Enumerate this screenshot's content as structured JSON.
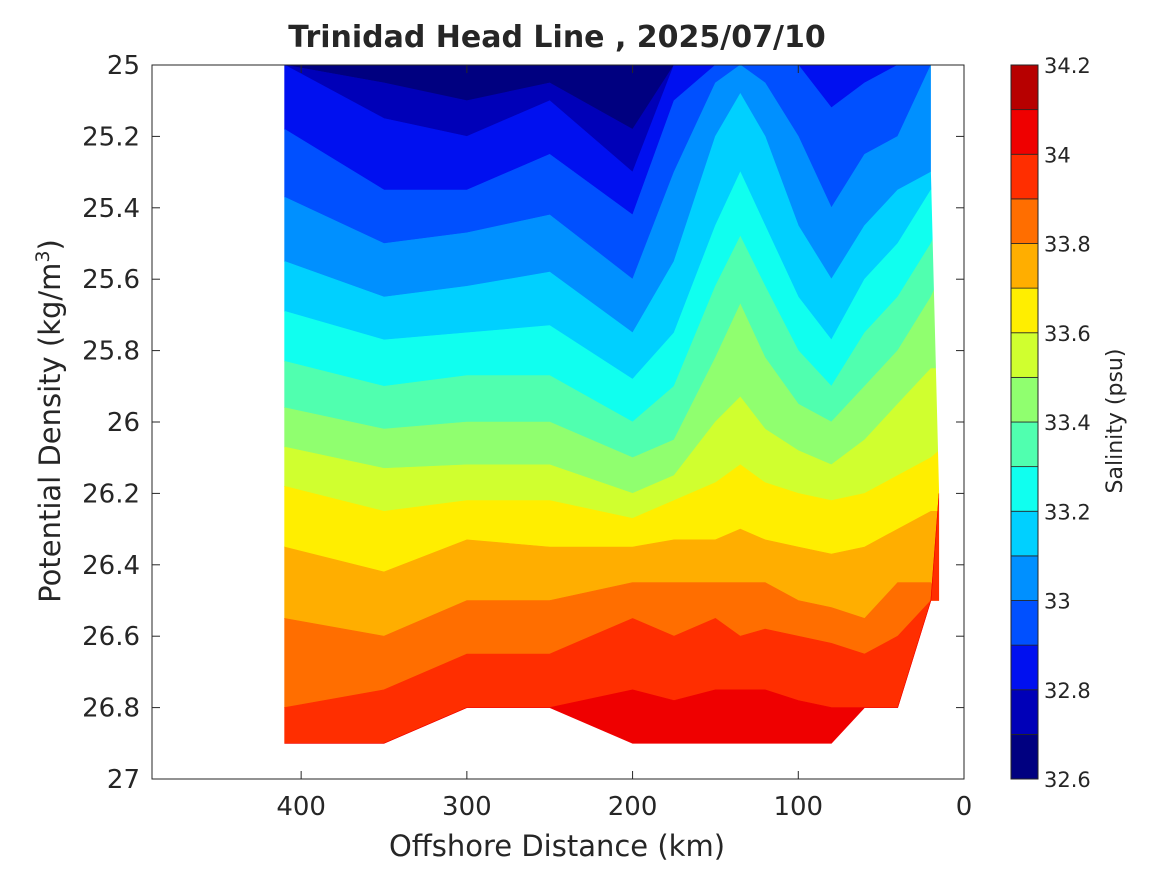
{
  "chart_data": {
    "type": "heatmap",
    "title": "Trinidad Head Line , 2025/07/10",
    "xlabel": "Offshore Distance (km)",
    "ylabel": "Potential Density (kg/m",
    "ylabel_superscript": "3",
    "ylabel_suffix": ")",
    "colorbar_label": "Salinity (psu)",
    "x_reversed": true,
    "y_reversed": true,
    "xlim": [
      490,
      0
    ],
    "ylim": [
      25,
      27
    ],
    "x_ticks": [
      "400",
      "300",
      "200",
      "100",
      "0"
    ],
    "x_tick_values": [
      400,
      300,
      200,
      100,
      0
    ],
    "y_ticks": [
      "25",
      "25.2",
      "25.4",
      "25.6",
      "25.8",
      "26",
      "26.2",
      "26.4",
      "26.6",
      "26.8",
      "27"
    ],
    "y_tick_values": [
      25,
      25.2,
      25.4,
      25.6,
      25.8,
      26,
      26.2,
      26.4,
      26.6,
      26.8,
      27
    ],
    "colorbar_ticks": [
      "32.6",
      "32.8",
      "33",
      "33.2",
      "33.4",
      "33.6",
      "33.8",
      "34",
      "34.2"
    ],
    "colorbar_tick_values": [
      32.6,
      32.8,
      33.0,
      33.2,
      33.4,
      33.6,
      33.8,
      34.0,
      34.2
    ],
    "levels": [
      32.6,
      32.7,
      32.8,
      32.9,
      33.0,
      33.1,
      33.2,
      33.3,
      33.4,
      33.5,
      33.6,
      33.7,
      33.8,
      33.9,
      34.0,
      34.1,
      34.2
    ],
    "level_colors": [
      "#000080",
      "#0000b8",
      "#0010f0",
      "#0050ff",
      "#0090ff",
      "#00d0ff",
      "#10ffef",
      "#50ffaf",
      "#90ff6f",
      "#d0ff2f",
      "#ffee00",
      "#ffae00",
      "#ff6e00",
      "#ff2e00",
      "#ef0000",
      "#b70000"
    ],
    "section_x_range": [
      410,
      15
    ],
    "distance_km": [
      410,
      350,
      300,
      250,
      200,
      175,
      150,
      135,
      120,
      100,
      80,
      60,
      40,
      20,
      15
    ],
    "bottom_density": [
      26.9,
      26.9,
      26.8,
      26.8,
      26.9,
      26.9,
      26.9,
      26.9,
      26.9,
      26.9,
      26.9,
      26.8,
      26.8,
      26.5,
      26.2
    ],
    "isohaline_depths": [
      {
        "salinity": 32.7,
        "y": [
          25.0,
          25.05,
          25.1,
          25.05,
          25.18,
          25.0,
          25.0,
          25.0,
          25.0,
          25.0,
          25.0,
          25.0,
          25.0,
          25.0,
          25.0
        ]
      },
      {
        "salinity": 32.8,
        "y": [
          25.0,
          25.15,
          25.2,
          25.1,
          25.3,
          25.0,
          25.0,
          25.0,
          25.0,
          25.0,
          25.0,
          25.0,
          25.0,
          25.0,
          25.0
        ]
      },
      {
        "salinity": 32.9,
        "y": [
          25.18,
          25.35,
          25.35,
          25.25,
          25.42,
          25.1,
          25.0,
          25.0,
          25.0,
          25.0,
          25.12,
          25.05,
          25.0,
          25.0,
          25.0
        ]
      },
      {
        "salinity": 33.0,
        "y": [
          25.37,
          25.5,
          25.47,
          25.42,
          25.6,
          25.3,
          25.05,
          25.0,
          25.05,
          25.2,
          25.4,
          25.25,
          25.2,
          25.0,
          25.0
        ]
      },
      {
        "salinity": 33.1,
        "y": [
          25.55,
          25.65,
          25.62,
          25.58,
          25.75,
          25.55,
          25.2,
          25.08,
          25.2,
          25.45,
          25.6,
          25.45,
          25.35,
          25.3,
          25.3
        ]
      },
      {
        "salinity": 33.2,
        "y": [
          25.69,
          25.77,
          25.75,
          25.73,
          25.88,
          25.75,
          25.45,
          25.3,
          25.45,
          25.65,
          25.77,
          25.6,
          25.5,
          25.35,
          25.35
        ]
      },
      {
        "salinity": 33.3,
        "y": [
          25.83,
          25.9,
          25.87,
          25.87,
          26.0,
          25.9,
          25.62,
          25.48,
          25.62,
          25.8,
          25.9,
          25.75,
          25.65,
          25.5,
          25.45
        ]
      },
      {
        "salinity": 33.4,
        "y": [
          25.96,
          26.02,
          26.0,
          26.0,
          26.1,
          26.05,
          25.82,
          25.67,
          25.82,
          25.95,
          26.0,
          25.9,
          25.8,
          25.65,
          25.6
        ]
      },
      {
        "salinity": 33.5,
        "y": [
          26.07,
          26.13,
          26.12,
          26.12,
          26.2,
          26.15,
          26.0,
          25.93,
          26.02,
          26.08,
          26.12,
          26.05,
          25.95,
          25.85,
          25.85
        ]
      },
      {
        "salinity": 33.6,
        "y": [
          26.18,
          26.25,
          26.22,
          26.22,
          26.27,
          26.22,
          26.17,
          26.12,
          26.17,
          26.2,
          26.22,
          26.2,
          26.15,
          26.1,
          26.08
        ]
      },
      {
        "salinity": 33.7,
        "y": [
          26.35,
          26.42,
          26.33,
          26.35,
          26.35,
          26.33,
          26.33,
          26.3,
          26.33,
          26.35,
          26.37,
          26.35,
          26.3,
          26.25,
          26.25
        ]
      },
      {
        "salinity": 33.8,
        "y": [
          26.55,
          26.6,
          26.5,
          26.5,
          26.45,
          26.45,
          26.45,
          26.45,
          26.45,
          26.5,
          26.52,
          26.55,
          26.45,
          26.45,
          26.5
        ]
      },
      {
        "salinity": 33.9,
        "y": [
          26.8,
          26.75,
          26.65,
          26.65,
          26.55,
          26.6,
          26.55,
          26.6,
          26.58,
          26.6,
          26.62,
          26.65,
          26.6,
          26.5,
          26.5
        ]
      },
      {
        "salinity": 34.0,
        "y": [
          26.9,
          26.9,
          26.8,
          26.8,
          26.75,
          26.78,
          26.75,
          26.75,
          26.75,
          26.78,
          26.8,
          26.8,
          26.8,
          26.5,
          26.2
        ]
      }
    ]
  }
}
